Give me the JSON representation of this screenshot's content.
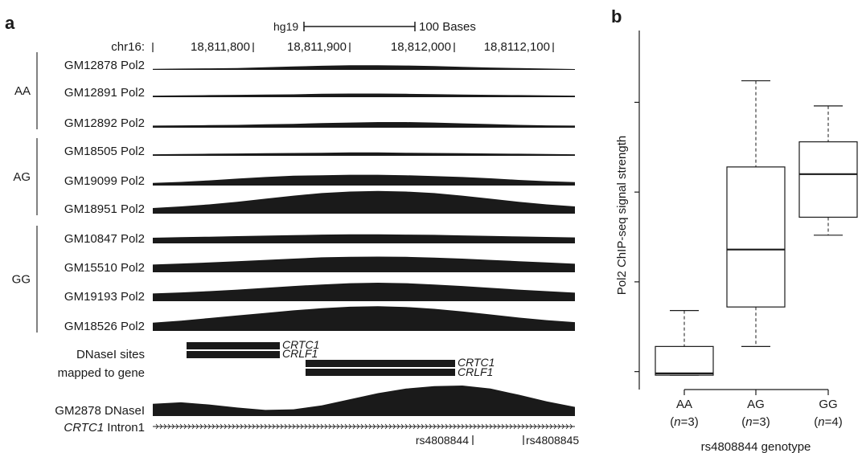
{
  "panel_a": {
    "letter": "a",
    "assembly": "hg19",
    "scale_label": "100 Bases",
    "chrom_prefix": "chr16:",
    "coord_ticks": [
      "18,811,800",
      "18,811,900",
      "18,812,000",
      "18,8112,100"
    ],
    "genotype_groups": [
      "AA",
      "AG",
      "GG"
    ],
    "tracks": [
      {
        "label": "GM12878 Pol2",
        "group": "AA",
        "shape": [
          0.04,
          0.05,
          0.06,
          0.07,
          0.1,
          0.13,
          0.16,
          0.18,
          0.18,
          0.17,
          0.15,
          0.12,
          0.09,
          0.07,
          0.05,
          0.03
        ]
      },
      {
        "label": "GM12891 Pol2",
        "group": "AA",
        "shape": [
          0.06,
          0.07,
          0.08,
          0.09,
          0.1,
          0.11,
          0.13,
          0.14,
          0.14,
          0.13,
          0.12,
          0.1,
          0.09,
          0.08,
          0.07,
          0.06
        ]
      },
      {
        "label": "GM12892 Pol2",
        "group": "AA",
        "shape": [
          0.08,
          0.09,
          0.1,
          0.11,
          0.13,
          0.15,
          0.18,
          0.2,
          0.22,
          0.22,
          0.2,
          0.17,
          0.14,
          0.11,
          0.09,
          0.08
        ]
      },
      {
        "label": "GM18505 Pol2",
        "group": "AG",
        "shape": [
          0.06,
          0.07,
          0.08,
          0.09,
          0.1,
          0.11,
          0.12,
          0.13,
          0.13,
          0.12,
          0.11,
          0.1,
          0.09,
          0.08,
          0.07,
          0.06
        ]
      },
      {
        "label": "GM19099 Pol2",
        "group": "AG",
        "shape": [
          0.1,
          0.14,
          0.2,
          0.27,
          0.33,
          0.38,
          0.4,
          0.42,
          0.42,
          0.4,
          0.37,
          0.33,
          0.28,
          0.22,
          0.17,
          0.13
        ]
      },
      {
        "label": "GM18951 Pol2",
        "group": "AG",
        "shape": [
          0.22,
          0.28,
          0.36,
          0.46,
          0.58,
          0.7,
          0.8,
          0.86,
          0.88,
          0.86,
          0.8,
          0.7,
          0.58,
          0.46,
          0.36,
          0.28
        ]
      },
      {
        "label": "GM10847 Pol2",
        "group": "GG",
        "shape": [
          0.22,
          0.24,
          0.26,
          0.28,
          0.3,
          0.32,
          0.34,
          0.35,
          0.35,
          0.34,
          0.33,
          0.31,
          0.29,
          0.27,
          0.25,
          0.23
        ]
      },
      {
        "label": "GM15510 Pol2",
        "group": "GG",
        "shape": [
          0.3,
          0.34,
          0.38,
          0.43,
          0.48,
          0.53,
          0.58,
          0.6,
          0.61,
          0.6,
          0.57,
          0.53,
          0.48,
          0.43,
          0.38,
          0.33
        ]
      },
      {
        "label": "GM19193 Pol2",
        "group": "GG",
        "shape": [
          0.3,
          0.34,
          0.39,
          0.45,
          0.52,
          0.59,
          0.65,
          0.7,
          0.72,
          0.7,
          0.65,
          0.59,
          0.52,
          0.45,
          0.39,
          0.33
        ]
      },
      {
        "label": "GM18526 Pol2",
        "group": "GG",
        "shape": [
          0.32,
          0.4,
          0.5,
          0.6,
          0.7,
          0.8,
          0.88,
          0.94,
          0.96,
          0.93,
          0.86,
          0.76,
          0.64,
          0.52,
          0.42,
          0.34
        ]
      }
    ],
    "dnase_label_1": "DNaseI sites",
    "dnase_label_2": "mapped to gene",
    "dnase_genes": [
      "CRTC1",
      "CRLF1"
    ],
    "dnase_track_label": "GM2878 DNaseI",
    "dnase_track_shape": [
      0.4,
      0.45,
      0.38,
      0.28,
      0.2,
      0.22,
      0.35,
      0.55,
      0.75,
      0.9,
      0.98,
      1.0,
      0.9,
      0.7,
      0.48,
      0.3
    ],
    "intron_gene": "CRTC1",
    "intron_suffix": "Intron1",
    "snps": [
      "rs4808844",
      "rs4808845"
    ]
  },
  "chart_data": {
    "type": "box",
    "letter": "b",
    "title": "",
    "xlabel": "rs4808844 genotype",
    "ylabel": "Pol2 ChIP-seq signal strength",
    "ylim": [
      0,
      10
    ],
    "y_tick_labels_shown": false,
    "categories": [
      "AA",
      "AG",
      "GG"
    ],
    "category_n": [
      "(n=3)",
      "(n=3)",
      "(n=4)"
    ],
    "boxes": [
      {
        "name": "AA",
        "n": 3,
        "whisker_low": 0.4,
        "q1": 0.4,
        "median": 0.45,
        "q3": 1.2,
        "whisker_high": 2.2
      },
      {
        "name": "AG",
        "n": 3,
        "whisker_low": 1.2,
        "q1": 2.3,
        "median": 3.9,
        "q3": 6.2,
        "whisker_high": 8.6
      },
      {
        "name": "GG",
        "n": 4,
        "whisker_low": 4.3,
        "q1": 4.8,
        "median": 6.0,
        "q3": 6.9,
        "whisker_high": 7.9
      }
    ]
  }
}
